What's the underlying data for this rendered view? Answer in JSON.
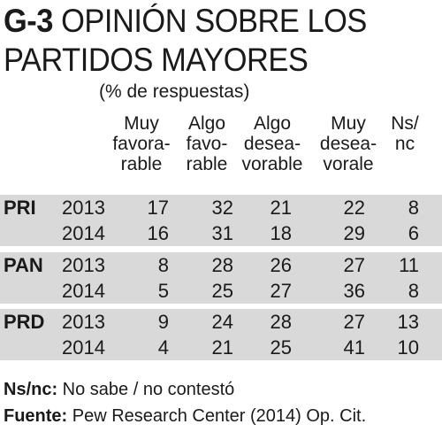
{
  "header": {
    "code": "G-3",
    "title": " OPINIÓN SOBRE LOS PARTIDOS MAYORES",
    "subtitle": "(% de respuestas)"
  },
  "chart_data": {
    "type": "table",
    "columns": [
      [
        "Muy",
        "favora-",
        "rable"
      ],
      [
        "Algo",
        "favo-",
        "rable"
      ],
      [
        "Algo",
        "desea-",
        "vorable"
      ],
      [
        "Muy",
        "desea-",
        "vorale"
      ],
      [
        "Ns/",
        "nc",
        ""
      ]
    ],
    "groups": [
      {
        "party": "PRI",
        "rows": [
          {
            "year": "2013",
            "values": [
              17,
              32,
              21,
              22,
              8
            ]
          },
          {
            "year": "2014",
            "values": [
              16,
              31,
              18,
              29,
              6
            ]
          }
        ]
      },
      {
        "party": "PAN",
        "rows": [
          {
            "year": "2013",
            "values": [
              8,
              28,
              26,
              27,
              11
            ]
          },
          {
            "year": "2014",
            "values": [
              5,
              25,
              27,
              36,
              8
            ]
          }
        ]
      },
      {
        "party": "PRD",
        "rows": [
          {
            "year": "2013",
            "values": [
              9,
              24,
              28,
              27,
              13
            ]
          },
          {
            "year": "2014",
            "values": [
              4,
              21,
              25,
              41,
              10
            ]
          }
        ]
      }
    ]
  },
  "footnotes": {
    "nsnc_label": "Ns/nc:",
    "nsnc_text": " No sabe / no contestó",
    "source_label": "Fuente:",
    "source_text": " Pew Research Center (2014) Op. Cit."
  }
}
